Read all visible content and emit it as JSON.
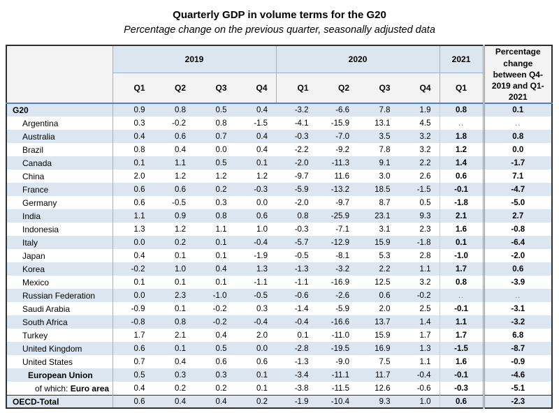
{
  "title": "Quarterly GDP in volume terms for the G20",
  "subtitle": "Percentage change on the previous quarter, seasonally adjusted data",
  "colors": {
    "row_shade": "#dce6f1",
    "header_year_bg": "#dce6f1",
    "header_bg": "#f3f3f3",
    "grid_blue": "#95b3d7",
    "header_rule_blue": "#4f81bd",
    "outer_border": "#2f2f2f",
    "missing_value_gray": "#7f7f7f"
  },
  "table": {
    "col_groups": [
      {
        "label": "2019",
        "span": 4
      },
      {
        "label": "2020",
        "span": 4
      },
      {
        "label": "2021",
        "span": 1
      }
    ],
    "quarter_headers": [
      "Q1",
      "Q2",
      "Q3",
      "Q4",
      "Q1",
      "Q2",
      "Q3",
      "Q4",
      "Q1"
    ],
    "change_header": "Percentage change between Q4-2019 and Q1-2021",
    "missing_marker": "..",
    "rows": [
      {
        "label": "G20",
        "bold": true,
        "indent": 0,
        "values": [
          "0.9",
          "0.8",
          "0.5",
          "0.4",
          "-3.2",
          "-6.6",
          "7.8",
          "1.9",
          "0.8",
          "0.1"
        ]
      },
      {
        "label": "Argentina",
        "bold": false,
        "indent": 1,
        "values": [
          "0.3",
          "-0.2",
          "0.8",
          "-1.5",
          "-4.1",
          "-15.9",
          "13.1",
          "4.5",
          "..",
          ".."
        ]
      },
      {
        "label": "Australia",
        "bold": false,
        "indent": 1,
        "values": [
          "0.4",
          "0.6",
          "0.7",
          "0.4",
          "-0.3",
          "-7.0",
          "3.5",
          "3.2",
          "1.8",
          "0.8"
        ]
      },
      {
        "label": "Brazil",
        "bold": false,
        "indent": 1,
        "values": [
          "0.8",
          "0.4",
          "0.0",
          "0.4",
          "-2.2",
          "-9.2",
          "7.8",
          "3.2",
          "1.2",
          "0.0"
        ]
      },
      {
        "label": "Canada",
        "bold": false,
        "indent": 1,
        "values": [
          "0.1",
          "1.1",
          "0.5",
          "0.1",
          "-2.0",
          "-11.3",
          "9.1",
          "2.2",
          "1.4",
          "-1.7"
        ]
      },
      {
        "label": "China",
        "bold": false,
        "indent": 1,
        "values": [
          "2.0",
          "1.2",
          "1.2",
          "1.2",
          "-9.7",
          "11.6",
          "3.0",
          "2.6",
          "0.6",
          "7.1"
        ]
      },
      {
        "label": "France",
        "bold": false,
        "indent": 1,
        "values": [
          "0.6",
          "0.6",
          "0.2",
          "-0.3",
          "-5.9",
          "-13.2",
          "18.5",
          "-1.5",
          "-0.1",
          "-4.7"
        ]
      },
      {
        "label": "Germany",
        "bold": false,
        "indent": 1,
        "values": [
          "0.6",
          "-0.5",
          "0.3",
          "0.0",
          "-2.0",
          "-9.7",
          "8.7",
          "0.5",
          "-1.8",
          "-5.0"
        ]
      },
      {
        "label": "India",
        "bold": false,
        "indent": 1,
        "values": [
          "1.1",
          "0.9",
          "0.8",
          "0.6",
          "0.8",
          "-25.9",
          "23.1",
          "9.3",
          "2.1",
          "2.7"
        ]
      },
      {
        "label": "Indonesia",
        "bold": false,
        "indent": 1,
        "values": [
          "1.3",
          "1.2",
          "1.1",
          "1.0",
          "-0.3",
          "-7.1",
          "3.1",
          "2.3",
          "1.6",
          "-0.8"
        ]
      },
      {
        "label": "Italy",
        "bold": false,
        "indent": 1,
        "values": [
          "0.0",
          "0.2",
          "0.1",
          "-0.4",
          "-5.7",
          "-12.9",
          "15.9",
          "-1.8",
          "0.1",
          "-6.4"
        ]
      },
      {
        "label": "Japan",
        "bold": false,
        "indent": 1,
        "values": [
          "0.4",
          "0.1",
          "0.1",
          "-1.9",
          "-0.5",
          "-8.1",
          "5.3",
          "2.8",
          "-1.0",
          "-2.0"
        ]
      },
      {
        "label": "Korea",
        "bold": false,
        "indent": 1,
        "values": [
          "-0.2",
          "1.0",
          "0.4",
          "1.3",
          "-1.3",
          "-3.2",
          "2.2",
          "1.1",
          "1.7",
          "0.6"
        ]
      },
      {
        "label": "Mexico",
        "bold": false,
        "indent": 1,
        "values": [
          "0.1",
          "0.1",
          "0.1",
          "-1.1",
          "-1.1",
          "-16.9",
          "12.5",
          "3.2",
          "0.8",
          "-3.9"
        ]
      },
      {
        "label": "Russian Federation",
        "bold": false,
        "indent": 1,
        "values": [
          "0.0",
          "2.3",
          "-1.0",
          "-0.5",
          "-0.6",
          "-2.6",
          "0.6",
          "-0.2",
          "..",
          ".."
        ]
      },
      {
        "label": "Saudi Arabia",
        "bold": false,
        "indent": 1,
        "values": [
          "-0.9",
          "0.1",
          "-0.2",
          "0.3",
          "-1.4",
          "-5.9",
          "2.0",
          "2.5",
          "-0.1",
          "-3.1"
        ]
      },
      {
        "label": "South Africa",
        "bold": false,
        "indent": 1,
        "values": [
          "-0.8",
          "0.8",
          "-0.2",
          "-0.4",
          "-0.4",
          "-16.6",
          "13.7",
          "1.4",
          "1.1",
          "-3.2"
        ]
      },
      {
        "label": "Turkey",
        "bold": false,
        "indent": 1,
        "values": [
          "1.7",
          "2.1",
          "0.4",
          "2.0",
          "0.1",
          "-11.0",
          "15.9",
          "1.7",
          "1.7",
          "6.8"
        ]
      },
      {
        "label": "United Kingdom",
        "bold": false,
        "indent": 1,
        "values": [
          "0.6",
          "0.1",
          "0.5",
          "0.0",
          "-2.8",
          "-19.5",
          "16.9",
          "1.3",
          "-1.5",
          "-8.7"
        ]
      },
      {
        "label": "United States",
        "bold": false,
        "indent": 1,
        "values": [
          "0.7",
          "0.4",
          "0.6",
          "0.6",
          "-1.3",
          "-9.0",
          "7.5",
          "1.1",
          "1.6",
          "-0.9"
        ]
      },
      {
        "label": "European Union",
        "bold": true,
        "indent": 2,
        "values": [
          "0.5",
          "0.3",
          "0.3",
          "0.1",
          "-3.4",
          "-11.1",
          "11.7",
          "-0.4",
          "-0.1",
          "-4.6"
        ]
      },
      {
        "label": "Euro area",
        "prefix": "of which: ",
        "bold": true,
        "indent": 3,
        "values": [
          "0.4",
          "0.2",
          "0.2",
          "0.1",
          "-3.8",
          "-11.5",
          "12.6",
          "-0.6",
          "-0.3",
          "-5.1"
        ]
      },
      {
        "label": "OECD-Total",
        "bold": true,
        "indent": 0,
        "total": true,
        "values": [
          "0.6",
          "0.4",
          "0.4",
          "0.2",
          "-1.9",
          "-10.4",
          "9.3",
          "1.0",
          "0.6",
          "-2.3"
        ]
      }
    ]
  }
}
